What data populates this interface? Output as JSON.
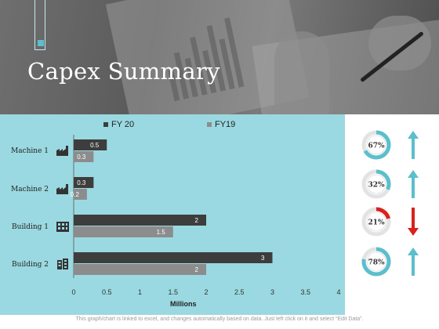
{
  "header": {
    "title": "Capex Summary"
  },
  "chart_data": {
    "type": "bar",
    "orientation": "horizontal",
    "categories": [
      "Machine 1",
      "Machine 2",
      "Building 1",
      "Building 2"
    ],
    "series": [
      {
        "name": "FY 20",
        "color": "#3d3d3d",
        "values": [
          0.5,
          0.3,
          2,
          3
        ]
      },
      {
        "name": "FY19",
        "color": "#8c8c8c",
        "values": [
          0.3,
          0.2,
          1.5,
          2
        ]
      }
    ],
    "xlabel": "Millions",
    "xlim": [
      0,
      4
    ],
    "ticks": [
      "0",
      "0.5",
      "1",
      "1.5",
      "2",
      "2.5",
      "3",
      "3.5",
      "4"
    ],
    "legend_position": "top",
    "grid": false
  },
  "icons": [
    "factory-icon",
    "factory-icon",
    "office-building-icon",
    "office-building-icon"
  ],
  "indicators": [
    {
      "label": "67%",
      "value": 0.67,
      "color": "#5bbfcc",
      "direction": "up",
      "arrow_color": "#5bbfcc"
    },
    {
      "label": "32%",
      "value": 0.32,
      "color": "#5bbfcc",
      "direction": "up",
      "arrow_color": "#5bbfcc"
    },
    {
      "label": "21%",
      "value": 0.21,
      "color": "#d9221c",
      "direction": "down",
      "arrow_color": "#d9221c"
    },
    {
      "label": "78%",
      "value": 0.78,
      "color": "#5bbfcc",
      "direction": "up",
      "arrow_color": "#5bbfcc"
    }
  ],
  "footnote": "This graph/chart is linked to excel, and changes automatically based on data. Just left click on it and select “Edit Data”."
}
